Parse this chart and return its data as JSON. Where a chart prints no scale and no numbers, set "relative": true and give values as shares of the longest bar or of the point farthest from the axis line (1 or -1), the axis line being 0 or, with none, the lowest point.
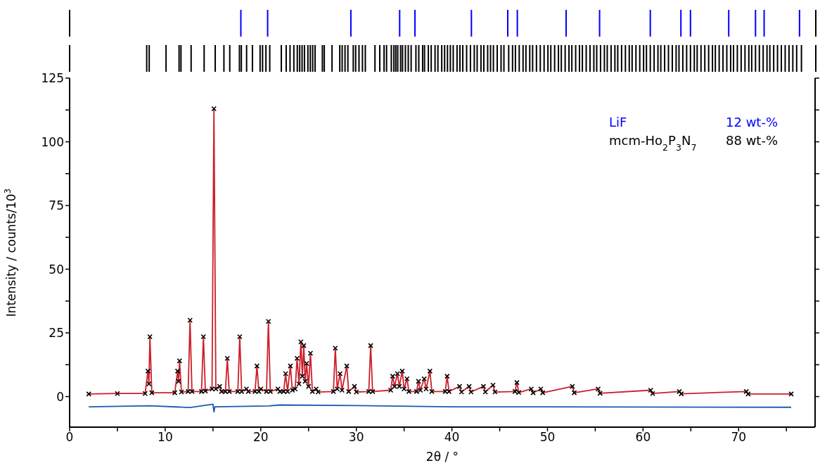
{
  "chart_data": [
    {
      "type": "bar",
      "relative": true,
      "color": "#0000ff",
      "xlim": [
        0,
        78
      ],
      "x": [
        17.9,
        20.7,
        29.4,
        34.5,
        36.1,
        42.0,
        45.8,
        46.8,
        51.9,
        55.4,
        60.7,
        63.9,
        64.9,
        68.9,
        71.7,
        72.6,
        76.3
      ],
      "values": [
        1,
        1,
        1,
        1,
        1,
        1,
        1,
        1,
        1,
        1,
        1,
        1,
        1,
        1,
        1,
        1,
        1
      ]
    },
    {
      "type": "bar",
      "relative": true,
      "color": "#000000",
      "xlim": [
        0,
        78
      ],
      "x": [
        8.06,
        8.32,
        10.08,
        11.44,
        11.64,
        12.7,
        14.06,
        15.22,
        16.13,
        16.74,
        17.75,
        17.95,
        18.5,
        19.11,
        19.91,
        20.17,
        20.52,
        20.92,
        22.13,
        22.64,
        23.04,
        23.44,
        23.8,
        24.05,
        24.3,
        24.55,
        24.91,
        25.16,
        25.41,
        25.66,
        26.42,
        26.62,
        27.43,
        28.24,
        28.49,
        28.79,
        29.09,
        29.65,
        29.9,
        30.25,
        30.61,
        30.91,
        31.92,
        32.42,
        32.87,
        33.13,
        33.63,
        33.9,
        34.1,
        34.3,
        34.6,
        34.8,
        35.1,
        35.4,
        35.7,
        36.2,
        36.5,
        36.9,
        37.1,
        37.5,
        37.8,
        38.2,
        38.5,
        38.9,
        39.2,
        39.5,
        39.8,
        40.1,
        40.5,
        40.8,
        41.1,
        41.5,
        41.9,
        42.3,
        42.6,
        43.0,
        43.3,
        43.7,
        44.0,
        44.3,
        44.7,
        45.1,
        45.4,
        45.9,
        46.3,
        46.6,
        47.0,
        47.4,
        47.7,
        48.1,
        48.4,
        48.8,
        49.2,
        49.6,
        50.0,
        50.3,
        50.7,
        51.1,
        51.4,
        51.8,
        52.2,
        52.5,
        52.9,
        53.3,
        53.6,
        54.0,
        54.4,
        54.8,
        55.1,
        55.5,
        55.9,
        56.2,
        56.6,
        57.0,
        57.3,
        57.7,
        58.1,
        58.5,
        58.8,
        59.2,
        59.6,
        60.0,
        60.3,
        60.7,
        61.1,
        61.5,
        61.8,
        62.2,
        62.6,
        63.0,
        63.4,
        63.7,
        64.1,
        64.5,
        64.9,
        65.3,
        65.6,
        66.0,
        66.4,
        66.8,
        67.2,
        67.5,
        67.9,
        68.3,
        68.7,
        69.1,
        69.4,
        69.8,
        70.2,
        70.6,
        71.0,
        71.3,
        71.7,
        72.1,
        72.5,
        72.9,
        73.2,
        73.6,
        74.0,
        74.4,
        74.8,
        75.2,
        75.6,
        76.0,
        76.5
      ],
      "values": [
        1,
        1,
        1,
        1,
        1,
        1,
        1,
        1,
        1,
        1,
        1,
        1,
        1,
        1,
        1,
        1,
        1,
        1,
        1,
        1,
        1,
        1,
        1,
        1,
        1,
        1,
        1,
        1,
        1,
        1,
        1,
        1,
        1,
        1,
        1,
        1,
        1,
        1,
        1,
        1,
        1,
        1,
        1,
        1,
        1,
        1,
        1,
        1,
        1,
        1,
        1,
        1,
        1,
        1,
        1,
        1,
        1,
        1,
        1,
        1,
        1,
        1,
        1,
        1,
        1,
        1,
        1,
        1,
        1,
        1,
        1,
        1,
        1,
        1,
        1,
        1,
        1,
        1,
        1,
        1,
        1,
        1,
        1,
        1,
        1,
        1,
        1,
        1,
        1,
        1,
        1,
        1,
        1,
        1,
        1,
        1,
        1,
        1,
        1,
        1,
        1,
        1,
        1,
        1,
        1,
        1,
        1,
        1,
        1,
        1,
        1,
        1,
        1,
        1,
        1,
        1,
        1,
        1,
        1,
        1,
        1,
        1,
        1,
        1,
        1,
        1,
        1,
        1,
        1,
        1,
        1,
        1,
        1,
        1,
        1,
        1,
        1,
        1,
        1,
        1,
        1,
        1,
        1,
        1,
        1,
        1,
        1,
        1,
        1,
        1,
        1,
        1,
        1,
        1,
        1,
        1,
        1,
        1,
        1,
        1,
        1,
        1,
        1,
        1,
        1
      ]
    },
    {
      "type": "line",
      "xlabel": "2θ / °",
      "ylabel": "Intensity / counts/10$^{3}$",
      "xlim": [
        0,
        78
      ],
      "ylim": [
        -12,
        125
      ],
      "xticks": [
        0,
        {
          "value": 5,
          "label": null
        },
        10,
        {
          "value": 15,
          "label": null
        },
        20,
        {
          "value": 25,
          "label": null
        },
        30,
        {
          "value": 35,
          "label": null
        },
        40,
        {
          "value": 45,
          "label": null
        },
        50,
        {
          "value": 55,
          "label": null
        },
        60,
        {
          "value": 65,
          "label": null
        },
        70,
        {
          "value": 75,
          "label": null
        }
      ],
      "yticks": [
        0,
        {
          "value": 12.5,
          "label": null
        },
        25,
        {
          "value": 37.5,
          "label": null
        },
        50,
        {
          "value": 62.5,
          "label": null
        },
        75,
        {
          "value": 87.5,
          "label": null
        },
        100,
        {
          "value": 112.5,
          "label": null
        },
        125
      ],
      "annotations": [
        "LiF",
        "12 wt-%",
        "mcm-Ho$_{2}$P$_{3}$N$_{7}$",
        "88 wt-%"
      ],
      "x": [
        2,
        5,
        7.9,
        8.2,
        8.3,
        8.4,
        8.6,
        11.0,
        11.3,
        11.4,
        11.5,
        11.7,
        12.4,
        12.6,
        12.8,
        13.8,
        14.0,
        14.2,
        14.9,
        15.1,
        15.3,
        15.7,
        15.9,
        16.3,
        16.5,
        16.7,
        17.6,
        17.8,
        18.0,
        18.5,
        18.7,
        19.4,
        19.6,
        19.8,
        20.0,
        20.6,
        20.8,
        21.0,
        21.8,
        22.0,
        22.4,
        22.6,
        22.8,
        23.1,
        23.3,
        23.6,
        23.8,
        24.0,
        24.2,
        24.35,
        24.5,
        24.65,
        24.8,
        25.0,
        25.2,
        25.4,
        25.8,
        26.0,
        27.6,
        27.8,
        28.0,
        28.3,
        28.5,
        29.0,
        29.2,
        29.8,
        30.0,
        31.3,
        31.5,
        31.7,
        33.6,
        33.8,
        34.0,
        34.3,
        34.5,
        34.8,
        35.0,
        35.3,
        35.5,
        36.3,
        36.5,
        36.7,
        37.1,
        37.3,
        37.7,
        37.9,
        39.3,
        39.5,
        39.7,
        40.8,
        41.0,
        41.8,
        42.0,
        43.3,
        43.5,
        44.3,
        44.5,
        46.6,
        46.8,
        47.0,
        48.3,
        48.5,
        49.3,
        49.5,
        52.6,
        52.8,
        55.3,
        55.5,
        60.8,
        61.0,
        63.8,
        64.0,
        70.8,
        71.0,
        75.5
      ],
      "series": [
        {
          "type": "scatter",
          "marker": "cross",
          "color": "#000000",
          "values": [
            1,
            1.2,
            1.2,
            10,
            5,
            23.5,
            1.5,
            1.5,
            10,
            6,
            14,
            1.8,
            2,
            30,
            2,
            2,
            23.5,
            2.2,
            3,
            113,
            3,
            4,
            2,
            2,
            15,
            2,
            2,
            23.5,
            2,
            3,
            2,
            2,
            12,
            2,
            3,
            2,
            29.5,
            2,
            3,
            2,
            2,
            9,
            2,
            12,
            2.5,
            3,
            15,
            5,
            21.5,
            8,
            20,
            6,
            13,
            4,
            17,
            2,
            3,
            1.8,
            2,
            19,
            3,
            9,
            2.5,
            12,
            2,
            4,
            1.8,
            2,
            20,
            2,
            2.5,
            8,
            4,
            9,
            4,
            10,
            3,
            7,
            2,
            2,
            6,
            2.5,
            7,
            3,
            10,
            2,
            2,
            8,
            2,
            4,
            1.8,
            4,
            1.8,
            4,
            1.8,
            4.5,
            1.8,
            2,
            5.5,
            1.6,
            3,
            1.5,
            3,
            1.5,
            4,
            1.5,
            3,
            1.3,
            2.5,
            1.2,
            2,
            1.1,
            2,
            1,
            1
          ]
        },
        {
          "color": "#cc1f2a",
          "values": [
            1,
            1.2,
            1.2,
            10,
            5,
            23.5,
            1.5,
            1.5,
            10,
            6,
            14,
            1.8,
            2,
            30,
            2,
            2,
            23.5,
            2.2,
            3,
            113,
            3,
            4,
            2,
            2,
            15,
            2,
            2,
            23.5,
            2,
            3,
            2,
            2,
            12,
            2,
            3,
            2,
            29.5,
            2,
            3,
            2,
            2,
            9,
            2,
            12,
            2.5,
            3,
            15,
            5,
            21.5,
            8,
            20,
            6,
            13,
            4,
            17,
            2,
            3,
            1.8,
            2,
            19,
            3,
            9,
            2.5,
            12,
            2,
            4,
            1.8,
            2,
            20,
            2,
            2.5,
            8,
            4,
            9,
            4,
            10,
            3,
            7,
            2,
            2,
            6,
            2.5,
            7,
            3,
            10,
            2,
            2,
            8,
            2,
            4,
            1.8,
            4,
            1.8,
            4,
            1.8,
            4.5,
            1.8,
            2,
            5.5,
            1.6,
            3,
            1.5,
            3,
            1.5,
            4,
            1.5,
            3,
            1.3,
            2.5,
            1.2,
            2,
            1.1,
            2,
            1,
            1
          ]
        },
        {
          "type": "line",
          "color": "#1a5cb0",
          "x": [
            2,
            8.4,
            12.6,
            15.0,
            15.1,
            15.2,
            20.8,
            22,
            31.5,
            40,
            75.5
          ],
          "values": [
            -4,
            -3.6,
            -4.3,
            -3,
            -6,
            -4,
            -3.7,
            -3.3,
            -3.6,
            -4,
            -4.2
          ]
        }
      ]
    }
  ]
}
